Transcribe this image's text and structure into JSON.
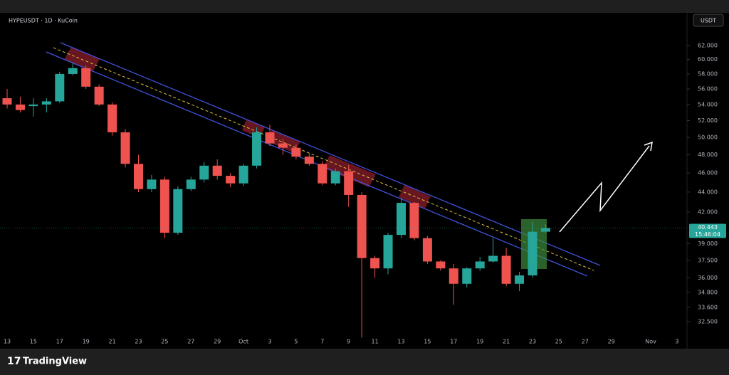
{
  "chart_data": {
    "type": "candlestick",
    "title": "HYPEUSDT · 1D · KuCoin",
    "currency_button": "USDT",
    "brand": "TradingView",
    "countdown": "15:46:04",
    "log_scale": true,
    "up_color": "#26a69a",
    "down_color": "#ef5350",
    "categories": [
      "13",
      null,
      "15",
      null,
      "17",
      null,
      "19",
      null,
      "21",
      null,
      "23",
      null,
      "25",
      null,
      "27",
      null,
      "29",
      null,
      "Oct",
      null,
      "3",
      null,
      "5",
      null,
      "7",
      null,
      "9",
      null,
      "11",
      null,
      "13",
      null,
      "15",
      null,
      "17",
      null,
      "19",
      null,
      "21",
      null,
      "23",
      null,
      "25",
      null,
      "27",
      null,
      "29",
      null,
      null,
      "Nov",
      null,
      "3"
    ],
    "open": [
      54.8,
      54.0,
      53.8,
      54.0,
      54.4,
      58.0,
      58.8,
      56.3,
      54.0,
      50.6,
      47.0,
      44.3,
      45.3,
      40.0,
      44.3,
      45.3,
      46.8,
      45.7,
      44.9,
      46.8,
      50.6,
      49.3,
      48.8,
      47.8,
      47.0,
      44.9,
      46.2,
      43.7,
      37.7,
      36.8,
      39.8,
      42.9,
      39.5,
      37.4,
      36.8,
      35.5,
      36.8,
      37.4,
      37.9,
      35.5,
      36.2,
      40.1,
      null,
      null,
      null,
      null,
      null,
      null,
      null,
      null,
      null,
      null
    ],
    "high": [
      56.0,
      55.0,
      54.8,
      54.8,
      58.3,
      59.5,
      59.2,
      56.6,
      54.3,
      51.0,
      48.0,
      45.8,
      45.6,
      44.6,
      45.6,
      47.2,
      47.5,
      46.0,
      47.0,
      51.2,
      51.5,
      49.8,
      49.2,
      48.2,
      47.3,
      46.5,
      46.9,
      44.0,
      37.9,
      40.0,
      43.4,
      43.0,
      39.7,
      37.5,
      37.2,
      36.9,
      37.8,
      39.5,
      38.6,
      36.5,
      41.0,
      40.8,
      null,
      null,
      null,
      null,
      null,
      null,
      null,
      null,
      null,
      null
    ],
    "low": [
      53.5,
      53.0,
      52.5,
      53.0,
      54.2,
      57.8,
      56.0,
      53.8,
      50.2,
      46.6,
      44.0,
      44.0,
      39.5,
      39.8,
      44.1,
      45.0,
      45.3,
      44.5,
      44.6,
      46.5,
      49.0,
      48.0,
      47.5,
      46.8,
      44.7,
      44.7,
      42.5,
      31.3,
      36.0,
      36.3,
      39.5,
      39.3,
      37.2,
      36.6,
      33.8,
      35.2,
      36.6,
      37.3,
      35.3,
      34.9,
      36.0,
      40.0,
      null,
      null,
      null,
      null,
      null,
      null,
      null,
      null,
      null,
      null
    ],
    "close": [
      54.0,
      53.3,
      54.0,
      54.4,
      58.0,
      58.8,
      56.3,
      54.0,
      50.6,
      47.0,
      44.3,
      45.3,
      40.0,
      44.3,
      45.3,
      46.8,
      45.7,
      44.9,
      46.8,
      50.6,
      49.3,
      48.8,
      47.8,
      47.0,
      44.9,
      46.2,
      43.7,
      37.7,
      36.8,
      39.8,
      42.9,
      39.5,
      37.4,
      36.8,
      35.5,
      36.8,
      37.4,
      37.9,
      35.5,
      36.2,
      40.1,
      40.443,
      null,
      null,
      null,
      null,
      null,
      null,
      null,
      null,
      null,
      null
    ],
    "ylim": [
      30.6,
      66.7
    ],
    "yticks": [
      {
        "value": 62,
        "label": "62.000"
      },
      {
        "value": 60,
        "label": "60.000"
      },
      {
        "value": 58,
        "label": "58.000"
      },
      {
        "value": 56,
        "label": "56.000"
      },
      {
        "value": 54,
        "label": "54.000"
      },
      {
        "value": 52,
        "label": "52.000"
      },
      {
        "value": 50,
        "label": "50.000"
      },
      {
        "value": 48,
        "label": "48.000"
      },
      {
        "value": 46,
        "label": "46.000"
      },
      {
        "value": 44,
        "label": "44.000"
      },
      {
        "value": 42,
        "label": "42.000"
      },
      {
        "value": 39,
        "label": "39.000"
      },
      {
        "value": 37.5,
        "label": "37.500"
      },
      {
        "value": 36,
        "label": "36.000"
      },
      {
        "value": 34.8,
        "label": "34.800"
      },
      {
        "value": 33.6,
        "label": "33.600"
      },
      {
        "value": 32.5,
        "label": "32.500"
      }
    ]
  }
}
